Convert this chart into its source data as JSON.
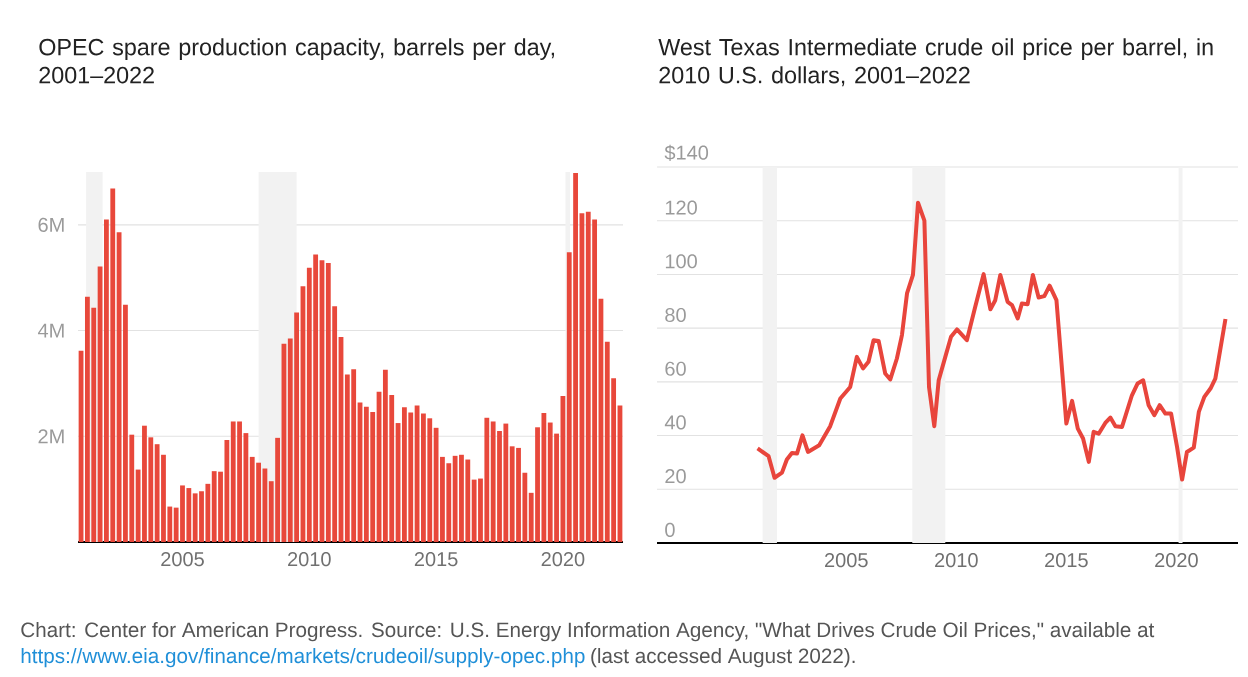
{
  "chart_data": [
    {
      "type": "bar",
      "title": "OPEC spare production capacity, barrels per day, 2001–2022",
      "x": [
        2001,
        2001.25,
        2001.5,
        2001.75,
        2002,
        2002.25,
        2002.5,
        2002.75,
        2003,
        2003.25,
        2003.5,
        2003.75,
        2004,
        2004.25,
        2004.5,
        2004.75,
        2005,
        2005.25,
        2005.5,
        2005.75,
        2006,
        2006.25,
        2006.5,
        2006.75,
        2007,
        2007.25,
        2007.5,
        2007.75,
        2008,
        2008.25,
        2008.5,
        2008.75,
        2009,
        2009.25,
        2009.5,
        2009.75,
        2010,
        2010.25,
        2010.5,
        2010.75,
        2011,
        2011.25,
        2011.5,
        2011.75,
        2012,
        2012.25,
        2012.5,
        2012.75,
        2013,
        2013.25,
        2013.5,
        2013.75,
        2014,
        2014.25,
        2014.5,
        2014.75,
        2015,
        2015.25,
        2015.5,
        2015.75,
        2016,
        2016.25,
        2016.5,
        2016.75,
        2017,
        2017.25,
        2017.5,
        2017.75,
        2018,
        2018.25,
        2018.5,
        2018.75,
        2019,
        2019.25,
        2019.5,
        2019.75,
        2020,
        2020.25,
        2020.5,
        2020.75,
        2021,
        2021.25,
        2021.5,
        2021.75,
        2022,
        2022.25
      ],
      "series": [
        {
          "color": "#e8483b",
          "values": [
            3.62,
            4.64,
            4.43,
            5.21,
            6.1,
            6.69,
            5.86,
            4.49,
            2.03,
            1.37,
            2.2,
            1.98,
            1.85,
            1.65,
            0.67,
            0.65,
            1.07,
            1.02,
            0.92,
            0.96,
            1.1,
            1.34,
            1.33,
            1.93,
            2.28,
            2.28,
            2.06,
            1.61,
            1.5,
            1.39,
            1.15,
            1.97,
            3.75,
            3.85,
            4.34,
            4.84,
            5.19,
            5.44,
            5.33,
            5.28,
            4.46,
            3.88,
            3.17,
            3.27,
            2.64,
            2.56,
            2.46,
            2.84,
            3.26,
            2.78,
            2.25,
            2.55,
            2.45,
            2.58,
            2.43,
            2.34,
            2.16,
            1.61,
            1.49,
            1.63,
            1.65,
            1.56,
            1.18,
            1.2,
            2.35,
            2.28,
            2.1,
            2.24,
            1.81,
            1.78,
            1.31,
            0.93,
            2.17,
            2.44,
            2.26,
            2.05,
            2.76,
            5.48,
            6.98,
            6.22,
            6.25,
            6.1,
            4.6,
            3.79,
            3.1,
            2.58
          ]
        }
      ],
      "xlim": [
        2000.88,
        2022.37
      ],
      "ylim": [
        0,
        7
      ],
      "xticks": [
        2005,
        2010,
        2015,
        2020
      ],
      "yticks": [
        {
          "value": 2,
          "label": "2M"
        },
        {
          "value": 4,
          "label": "4M"
        },
        {
          "value": 6,
          "label": "6M"
        }
      ],
      "bands": [
        {
          "axis": "x",
          "from": 2001.2,
          "to": 2001.85,
          "color": "#f2f2f2"
        },
        {
          "axis": "x",
          "from": 2008.0,
          "to": 2009.5,
          "color": "#f2f2f2"
        },
        {
          "axis": "x",
          "from": 2020.1,
          "to": 2020.28,
          "color": "#f2f2f2"
        }
      ],
      "grid": "y"
    },
    {
      "type": "line",
      "title": "West Texas Intermediate crude oil price per barrel, in 2010 U.S. dollars, 2001–2022",
      "x": [
        2000.97,
        2001.47,
        2001.74,
        2002.08,
        2002.3,
        2002.53,
        2002.76,
        2003.01,
        2003.26,
        2003.77,
        2004.27,
        2004.73,
        2005.18,
        2005.48,
        2005.76,
        2006.01,
        2006.24,
        2006.47,
        2006.77,
        2007.0,
        2007.3,
        2007.53,
        2007.76,
        2008.03,
        2008.26,
        2008.55,
        2008.76,
        2009.0,
        2009.2,
        2009.5,
        2009.76,
        2010.03,
        2010.48,
        2010.86,
        2011.24,
        2011.55,
        2011.77,
        2012.0,
        2012.33,
        2012.53,
        2012.79,
        2012.98,
        2013.24,
        2013.48,
        2013.74,
        2014.0,
        2014.24,
        2014.55,
        2015.0,
        2015.26,
        2015.52,
        2015.76,
        2016.02,
        2016.24,
        2016.47,
        2016.77,
        2017.0,
        2017.23,
        2017.53,
        2017.98,
        2018.24,
        2018.49,
        2018.74,
        2019.0,
        2019.24,
        2019.5,
        2019.76,
        2020.03,
        2020.26,
        2020.48,
        2020.79,
        2021.02,
        2021.27,
        2021.55,
        2021.77,
        2022.23
      ],
      "series": [
        {
          "color": "#e8453c",
          "values": [
            35.2,
            32.3,
            24.3,
            26.2,
            31.1,
            33.5,
            33.3,
            40.1,
            33.9,
            36.4,
            43.5,
            53.8,
            58.1,
            69.3,
            65.0,
            67.5,
            75.5,
            75.2,
            63.1,
            60.9,
            68.7,
            77.4,
            92.9,
            99.8,
            126.7,
            120.0,
            58.1,
            43.5,
            60.6,
            69.3,
            76.8,
            79.5,
            75.5,
            88.0,
            100.1,
            87.0,
            90.4,
            99.8,
            89.8,
            88.6,
            83.6,
            89.2,
            88.9,
            99.8,
            91.4,
            91.9,
            95.8,
            90.4,
            44.5,
            52.9,
            42.6,
            38.9,
            30.2,
            41.4,
            40.7,
            44.7,
            46.7,
            43.5,
            43.2,
            55.0,
            59.4,
            60.6,
            51.3,
            47.6,
            51.3,
            48.2,
            48.2,
            35.8,
            23.6,
            33.9,
            35.5,
            48.8,
            54.4,
            57.5,
            61.2,
            83.4
          ]
        }
      ],
      "xlim": [
        1996.4,
        2022.8
      ],
      "ylim": [
        0,
        140
      ],
      "xticks": [
        2005,
        2010,
        2015,
        2020
      ],
      "yticks": [
        0,
        20,
        40,
        60,
        80,
        100,
        120,
        {
          "value": 140,
          "label": "$140"
        }
      ],
      "bands": [
        {
          "axis": "x",
          "from": 2001.2,
          "to": 2001.85,
          "color": "#f2f2f2"
        },
        {
          "axis": "x",
          "from": 2008.0,
          "to": 2009.5,
          "color": "#f2f2f2"
        },
        {
          "axis": "x",
          "from": 2020.1,
          "to": 2020.28,
          "color": "#f2f2f2"
        }
      ],
      "grid": "y",
      "annotations": [
        "Chart: Center for American Progress. Source: U.S. Energy Information Agency, \"What Drives Crude Oil Prices,\" available at",
        "https://www.eia.gov/finance/markets/crudeoil/supply-opec.php",
        "(last accessed August 2022)."
      ]
    }
  ]
}
